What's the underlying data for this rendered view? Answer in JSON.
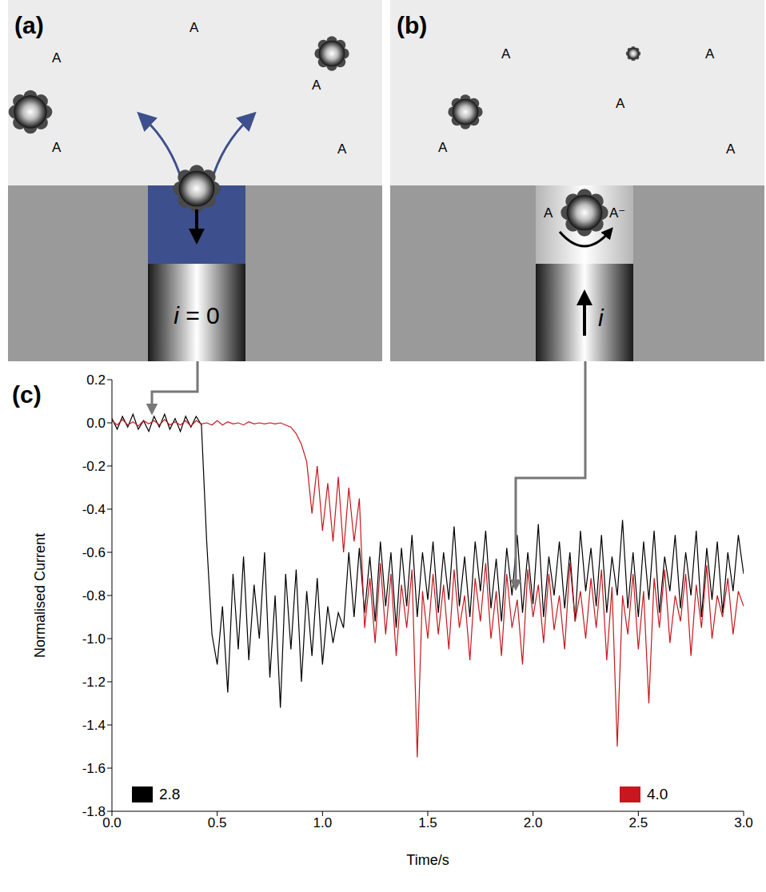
{
  "panels": [
    {
      "label": "(a)",
      "species": [
        "A",
        "A",
        "A",
        "A",
        "A"
      ],
      "current_label": "i = 0"
    },
    {
      "label": "(b)",
      "species": [
        "A",
        "A",
        "A",
        "A",
        "A"
      ],
      "reactant": "A",
      "product": "A⁻",
      "current_label": "i"
    }
  ],
  "chart_data": {
    "type": "line",
    "title": "(c)",
    "x_label": "Time/s",
    "y_label": "Normalised Current",
    "xlim": [
      0,
      3
    ],
    "xticks": [
      {
        "value": 0,
        "label": "0.0"
      },
      0.5,
      {
        "value": 1,
        "label": "1.0"
      },
      1.5,
      {
        "value": 2,
        "label": "2.0"
      },
      2.5,
      {
        "value": 3,
        "label": "3.0"
      }
    ],
    "ylim": [
      -1.8,
      0.2
    ],
    "yticks": [
      -1.8,
      -1.6,
      -1.4,
      -1.2,
      {
        "value": -1,
        "label": "-1.0"
      },
      -0.8,
      -0.6,
      -0.4,
      -0.2,
      {
        "value": 0,
        "label": "0.0"
      },
      0.2
    ],
    "grid": false,
    "legend": "bottom",
    "x": [
      0,
      0.025,
      0.05,
      0.075,
      0.1,
      0.125,
      0.15,
      0.175,
      0.2,
      0.225,
      0.25,
      0.275,
      0.3,
      0.325,
      0.35,
      0.375,
      0.4,
      0.425,
      0.45,
      0.475,
      0.5,
      0.525,
      0.55,
      0.575,
      0.6,
      0.625,
      0.65,
      0.675,
      0.7,
      0.725,
      0.75,
      0.775,
      0.8,
      0.825,
      0.85,
      0.875,
      0.9,
      0.925,
      0.95,
      0.975,
      1,
      1.025,
      1.05,
      1.075,
      1.1,
      1.125,
      1.15,
      1.175,
      1.2,
      1.225,
      1.25,
      1.275,
      1.3,
      1.325,
      1.35,
      1.375,
      1.4,
      1.425,
      1.45,
      1.475,
      1.5,
      1.525,
      1.55,
      1.575,
      1.6,
      1.625,
      1.65,
      1.675,
      1.7,
      1.725,
      1.75,
      1.775,
      1.8,
      1.825,
      1.85,
      1.875,
      1.9,
      1.925,
      1.95,
      1.975,
      2,
      2.025,
      2.05,
      2.075,
      2.1,
      2.125,
      2.15,
      2.175,
      2.2,
      2.225,
      2.25,
      2.275,
      2.3,
      2.325,
      2.35,
      2.375,
      2.4,
      2.425,
      2.45,
      2.475,
      2.5,
      2.525,
      2.55,
      2.575,
      2.6,
      2.625,
      2.65,
      2.675,
      2.7,
      2.725,
      2.75,
      2.775,
      2.8,
      2.825,
      2.85,
      2.875,
      2.9,
      2.925,
      2.95,
      2.975,
      3
    ],
    "series": [
      {
        "name": "2.8",
        "color": "#000000",
        "values": [
          0.02,
          -0.03,
          0.03,
          -0.02,
          0.04,
          -0.03,
          0.01,
          -0.04,
          0.03,
          -0.02,
          0.04,
          -0.03,
          0.02,
          -0.04,
          0.03,
          -0.02,
          0.03,
          -0.01,
          -0.55,
          -0.98,
          -1.12,
          -0.85,
          -1.25,
          -0.7,
          -1.05,
          -0.62,
          -1.1,
          -0.75,
          -1.0,
          -0.6,
          -1.18,
          -0.8,
          -1.32,
          -0.7,
          -1.05,
          -0.68,
          -1.2,
          -0.78,
          -1.08,
          -0.72,
          -1.12,
          -0.85,
          -1.02,
          -0.88,
          -0.95,
          -0.6,
          -0.9,
          -0.58,
          -0.88,
          -0.62,
          -0.92,
          -0.55,
          -0.85,
          -0.6,
          -0.95,
          -0.58,
          -0.85,
          -0.52,
          -0.9,
          -0.6,
          -0.82,
          -0.55,
          -0.88,
          -0.6,
          -0.82,
          -0.48,
          -0.85,
          -0.62,
          -0.9,
          -0.55,
          -0.78,
          -0.5,
          -0.86,
          -0.63,
          -0.92,
          -0.58,
          -0.8,
          -0.52,
          -0.88,
          -0.6,
          -0.84,
          -0.47,
          -0.9,
          -0.62,
          -0.8,
          -0.55,
          -0.86,
          -0.6,
          -0.92,
          -0.5,
          -0.78,
          -0.58,
          -0.85,
          -0.52,
          -0.88,
          -0.62,
          -0.8,
          -0.45,
          -0.86,
          -0.6,
          -0.9,
          -0.55,
          -0.82,
          -0.5,
          -0.88,
          -0.62,
          -0.78,
          -0.52,
          -0.86,
          -0.6,
          -0.8,
          -0.5,
          -0.9,
          -0.58,
          -0.82,
          -0.55,
          -0.88,
          -0.6,
          -0.78,
          -0.52,
          -0.7
        ]
      },
      {
        "name": "4.0",
        "color": "#c8171e",
        "values": [
          0.01,
          -0.01,
          0.015,
          -0.01,
          0.005,
          -0.015,
          0.01,
          -0.005,
          0.01,
          -0.01,
          0.015,
          -0.01,
          0.005,
          -0.01,
          0.01,
          -0.015,
          0.01,
          -0.005,
          0.0,
          -0.01,
          0.01,
          -0.01,
          0.005,
          -0.005,
          0.0,
          -0.01,
          0.005,
          -0.005,
          0.0,
          -0.005,
          0.0,
          -0.005,
          0.0,
          -0.01,
          -0.02,
          -0.05,
          -0.1,
          -0.18,
          -0.42,
          -0.2,
          -0.5,
          -0.28,
          -0.55,
          -0.25,
          -0.6,
          -0.3,
          -0.55,
          -0.35,
          -0.95,
          -0.72,
          -1.02,
          -0.65,
          -0.98,
          -0.7,
          -1.08,
          -0.75,
          -0.95,
          -0.68,
          -1.55,
          -0.78,
          -1.0,
          -0.7,
          -0.98,
          -0.75,
          -1.05,
          -0.68,
          -0.95,
          -0.8,
          -1.1,
          -0.72,
          -0.92,
          -0.65,
          -1.0,
          -0.78,
          -1.08,
          -0.7,
          -0.95,
          -0.82,
          -1.12,
          -0.68,
          -0.9,
          -0.75,
          -1.02,
          -0.7,
          -0.96,
          -0.8,
          -1.05,
          -0.65,
          -0.92,
          -0.78,
          -1.0,
          -0.72,
          -0.95,
          -0.68,
          -1.1,
          -0.76,
          -1.5,
          -0.8,
          -0.98,
          -0.7,
          -1.05,
          -0.78,
          -1.3,
          -0.72,
          -0.95,
          -0.68,
          -1.02,
          -0.8,
          -0.92,
          -0.7,
          -1.08,
          -0.75,
          -0.95,
          -0.66,
          -1.0,
          -0.8,
          -0.9,
          -0.72,
          -0.98,
          -0.78,
          -0.85
        ]
      }
    ]
  }
}
